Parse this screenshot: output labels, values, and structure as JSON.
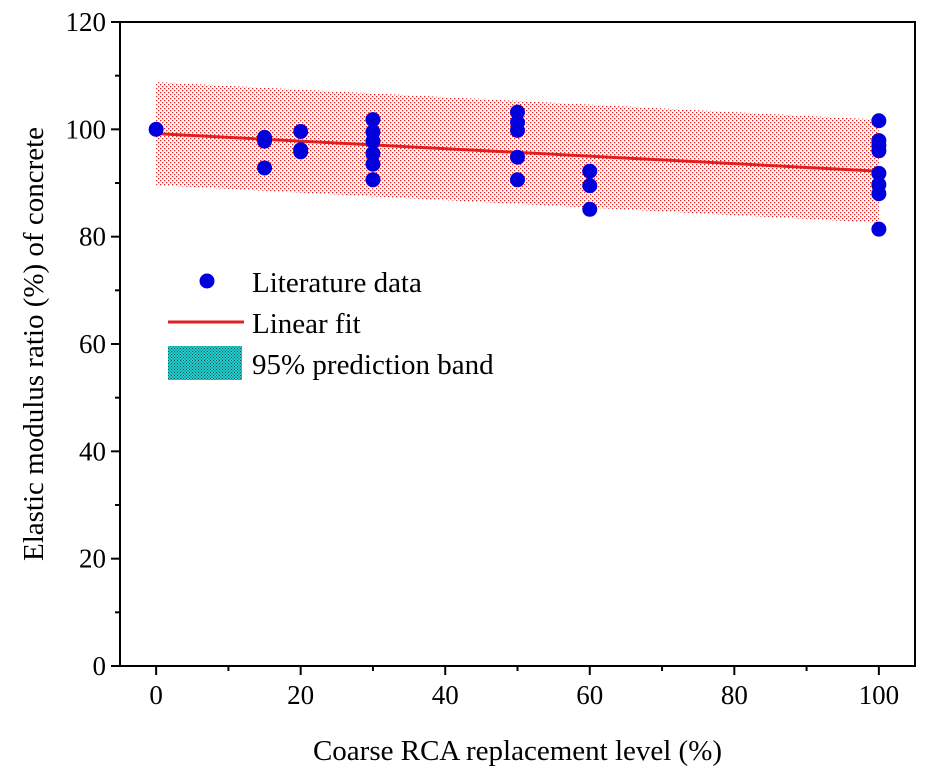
{
  "chart_data": {
    "type": "scatter",
    "xlabel": "Coarse RCA replacement level (%)",
    "ylabel": "Elastic modulus ratio (%) of concrete",
    "xlim": [
      -5,
      105
    ],
    "ylim": [
      0,
      120
    ],
    "x_ticks": [
      0,
      20,
      40,
      60,
      80,
      100
    ],
    "y_ticks": [
      0,
      20,
      40,
      60,
      80,
      100,
      120
    ],
    "x_tick_labels": [
      "0",
      "20",
      "40",
      "60",
      "80",
      "100"
    ],
    "y_tick_labels": [
      "0",
      "20",
      "40",
      "60",
      "80",
      "100",
      "120"
    ],
    "grid": false,
    "legend_position": "center-left",
    "series": [
      {
        "name": "Literature data",
        "kind": "scatter",
        "color": "#0000dd",
        "points": [
          [
            0,
            100
          ],
          [
            15,
            98.5
          ],
          [
            15,
            97.8
          ],
          [
            15,
            92.8
          ],
          [
            20,
            99.6
          ],
          [
            20,
            96.2
          ],
          [
            20,
            95.8
          ],
          [
            30,
            101.8
          ],
          [
            30,
            99.5
          ],
          [
            30,
            97.8
          ],
          [
            30,
            95.5
          ],
          [
            30,
            93.5
          ],
          [
            30,
            90.6
          ],
          [
            50,
            103.2
          ],
          [
            50,
            101.3
          ],
          [
            50,
            99.8
          ],
          [
            50,
            94.8
          ],
          [
            50,
            90.6
          ],
          [
            60,
            92.2
          ],
          [
            60,
            89.5
          ],
          [
            60,
            85.1
          ],
          [
            100,
            101.6
          ],
          [
            100,
            97.9
          ],
          [
            100,
            97.0
          ],
          [
            100,
            96.0
          ],
          [
            100,
            91.8
          ],
          [
            100,
            89.7
          ],
          [
            100,
            88.0
          ],
          [
            100,
            81.4
          ]
        ]
      },
      {
        "name": "Linear fit",
        "kind": "line",
        "color": "#e02020",
        "x": [
          0,
          100
        ],
        "y": [
          99.2,
          92.2
        ]
      },
      {
        "name": "95% prediction band",
        "kind": "band",
        "color": "#e02020",
        "legend_swatch_color": "#20d0d0",
        "x": [
          0,
          100
        ],
        "upper": [
          108.8,
          101.8
        ],
        "lower": [
          89.6,
          82.6
        ]
      }
    ]
  }
}
